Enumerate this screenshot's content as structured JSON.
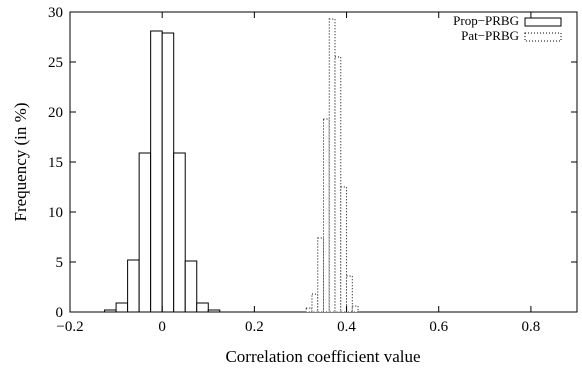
{
  "chart_data": {
    "type": "bar",
    "subtype": "histogram",
    "title": "",
    "xlabel": "Correlation coefficient value",
    "ylabel": "Frequency (in %)",
    "xlim": [
      -0.2,
      0.9
    ],
    "ylim": [
      0,
      30
    ],
    "xticks": [
      -0.2,
      0,
      0.2,
      0.4,
      0.6,
      0.8
    ],
    "xtick_labels": [
      "−0.2",
      "0",
      "0.2",
      "0.4",
      "0.6",
      "0.8"
    ],
    "yticks": [
      0,
      5,
      10,
      15,
      20,
      25,
      30
    ],
    "ytick_labels": [
      "0",
      "5",
      "10",
      "15",
      "20",
      "25",
      "30"
    ],
    "grid": false,
    "legend_position": "top-right",
    "series": [
      {
        "name": "Prop−PRBG",
        "style": "solid",
        "bin_width": 0.025,
        "bins": [
          {
            "x0": -0.125,
            "value": 0.2
          },
          {
            "x0": -0.1,
            "value": 0.9
          },
          {
            "x0": -0.075,
            "value": 5.2
          },
          {
            "x0": -0.05,
            "value": 15.9
          },
          {
            "x0": -0.025,
            "value": 28.1
          },
          {
            "x0": 0.0,
            "value": 27.9
          },
          {
            "x0": 0.025,
            "value": 15.9
          },
          {
            "x0": 0.05,
            "value": 5.1
          },
          {
            "x0": 0.075,
            "value": 0.9
          },
          {
            "x0": 0.1,
            "value": 0.2
          }
        ]
      },
      {
        "name": "Pat−PRBG",
        "style": "dotted",
        "bin_width": 0.0125,
        "bins": [
          {
            "x0": 0.3125,
            "value": 0.4
          },
          {
            "x0": 0.325,
            "value": 1.8
          },
          {
            "x0": 0.3375,
            "value": 7.4
          },
          {
            "x0": 0.35,
            "value": 19.3
          },
          {
            "x0": 0.3625,
            "value": 29.3
          },
          {
            "x0": 0.375,
            "value": 25.5
          },
          {
            "x0": 0.3875,
            "value": 12.5
          },
          {
            "x0": 0.4,
            "value": 3.6
          },
          {
            "x0": 0.4125,
            "value": 0.6
          }
        ]
      }
    ]
  }
}
